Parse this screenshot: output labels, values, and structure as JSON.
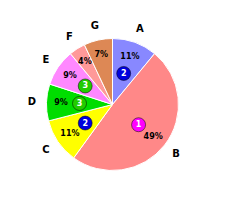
{
  "chart_data": {
    "type": "pie",
    "categories": [
      "A",
      "B",
      "C",
      "D",
      "E",
      "F",
      "G"
    ],
    "values": [
      11,
      49,
      11,
      9,
      9,
      4,
      7
    ],
    "value_labels": [
      "11%",
      "49%",
      "11%",
      "9%",
      "9%",
      "4%",
      "7%"
    ],
    "data_labels": true,
    "colors": [
      "#8888ff",
      "#ff8888",
      "#ffff00",
      "#00dd00",
      "#ff88ff",
      "#ff9999",
      "#dd8855"
    ],
    "annotations": [
      {
        "label": "B",
        "text": "1",
        "color": "#ff00ff"
      },
      {
        "label": "A",
        "text": "2",
        "color": "#0000dd"
      },
      {
        "label": "C",
        "text": "2",
        "color": "#0000dd"
      },
      {
        "label": "D",
        "text": "3",
        "color": "#22cc00"
      },
      {
        "label": "E",
        "text": "3",
        "color": "#22cc00"
      }
    ]
  }
}
